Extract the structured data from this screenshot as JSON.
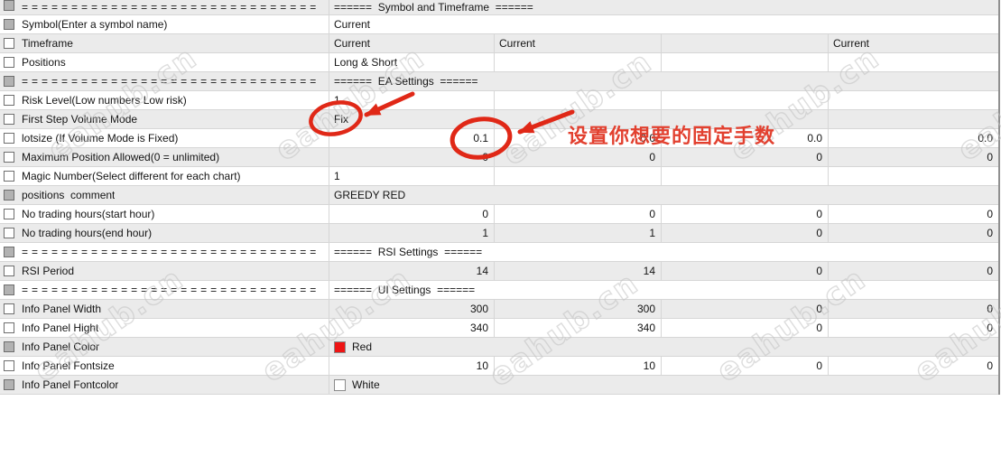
{
  "page": {
    "note_text": "设置你想要的固定手数",
    "watermark_text": "eahub.cn"
  },
  "colors": {
    "pen": "#e02817",
    "note": "#e2402f",
    "row_alt": "#ebebeb",
    "grid": "#d6d6d6",
    "checkbox_fill": "#b2b2b2",
    "swatch_red": "#ee1414",
    "swatch_white": "#ffffff",
    "table_edge": "#8f8f8f"
  },
  "table": {
    "rows": [
      {
        "separator": true,
        "checkbox": "filled",
        "label": "==============================",
        "cells": [
          {
            "text": "======  Symbol and Timeframe  ======",
            "align": "left",
            "span": true
          }
        ]
      },
      {
        "checkbox": "filled",
        "label": "Symbol(Enter a symbol name)",
        "cells": [
          {
            "text": "Current",
            "align": "left",
            "span": true
          }
        ]
      },
      {
        "checkbox": "empty",
        "label": "Timeframe",
        "cells": [
          {
            "text": "Current",
            "align": "left"
          },
          {
            "text": "Current",
            "align": "left"
          },
          {
            "text": "",
            "align": "left"
          },
          {
            "text": "Current",
            "align": "left"
          }
        ]
      },
      {
        "checkbox": "empty",
        "label": "Positions",
        "cells": [
          {
            "text": "Long & Short",
            "align": "left"
          },
          {
            "text": "",
            "align": "left"
          },
          {
            "text": "",
            "align": "left"
          },
          {
            "text": "",
            "align": "left"
          }
        ]
      },
      {
        "separator": true,
        "checkbox": "filled",
        "label": "==============================",
        "cells": [
          {
            "text": "======  EA Settings  ======",
            "align": "left",
            "span": true
          }
        ]
      },
      {
        "checkbox": "empty",
        "label": "Risk Level(Low numbers Low risk)",
        "cells": [
          {
            "text": "1",
            "align": "left"
          },
          {
            "text": "",
            "align": "left"
          },
          {
            "text": "",
            "align": "left"
          },
          {
            "text": "",
            "align": "left"
          }
        ]
      },
      {
        "checkbox": "empty",
        "label": "First Step Volume Mode",
        "cells": [
          {
            "text": "Fix",
            "align": "left"
          },
          {
            "text": "",
            "align": "left"
          },
          {
            "text": "",
            "align": "left"
          },
          {
            "text": "",
            "align": "left"
          }
        ]
      },
      {
        "checkbox": "empty",
        "label": "lotsize (If Volume Mode is Fixed)",
        "cells": [
          {
            "text": "0.1",
            "align": "right"
          },
          {
            "text": "0.0",
            "align": "right"
          },
          {
            "text": "0.0",
            "align": "right"
          },
          {
            "text": "0.0",
            "align": "right"
          }
        ]
      },
      {
        "checkbox": "empty",
        "label": "Maximum Position Allowed(0 = unlimited)",
        "cells": [
          {
            "text": "0",
            "align": "right"
          },
          {
            "text": "0",
            "align": "right"
          },
          {
            "text": "0",
            "align": "right"
          },
          {
            "text": "0",
            "align": "right"
          }
        ]
      },
      {
        "checkbox": "empty",
        "label": "Magic Number(Select different for each chart)",
        "cells": [
          {
            "text": "1",
            "align": "left"
          },
          {
            "text": "",
            "align": "left"
          },
          {
            "text": "",
            "align": "left"
          },
          {
            "text": "",
            "align": "left"
          }
        ]
      },
      {
        "checkbox": "filled",
        "label": "positions  comment",
        "cells": [
          {
            "text": "GREEDY RED",
            "align": "left",
            "span": true
          }
        ]
      },
      {
        "checkbox": "empty",
        "label": "No trading hours(start hour)",
        "cells": [
          {
            "text": "0",
            "align": "right"
          },
          {
            "text": "0",
            "align": "right"
          },
          {
            "text": "0",
            "align": "right"
          },
          {
            "text": "0",
            "align": "right"
          }
        ]
      },
      {
        "checkbox": "empty",
        "label": "No trading hours(end hour)",
        "cells": [
          {
            "text": "1",
            "align": "right"
          },
          {
            "text": "1",
            "align": "right"
          },
          {
            "text": "0",
            "align": "right"
          },
          {
            "text": "0",
            "align": "right"
          }
        ]
      },
      {
        "separator": true,
        "checkbox": "filled",
        "label": "==============================",
        "cells": [
          {
            "text": "======  RSI Settings  ======",
            "align": "left",
            "span": true
          }
        ]
      },
      {
        "checkbox": "empty",
        "label": "RSI Period",
        "cells": [
          {
            "text": "14",
            "align": "right"
          },
          {
            "text": "14",
            "align": "right"
          },
          {
            "text": "0",
            "align": "right"
          },
          {
            "text": "0",
            "align": "right"
          }
        ]
      },
      {
        "separator": true,
        "checkbox": "filled",
        "label": "==============================",
        "cells": [
          {
            "text": "======  UI Settings  ======",
            "align": "left",
            "span": true
          }
        ]
      },
      {
        "checkbox": "empty",
        "label": "Info Panel Width",
        "cells": [
          {
            "text": "300",
            "align": "right"
          },
          {
            "text": "300",
            "align": "right"
          },
          {
            "text": "0",
            "align": "right"
          },
          {
            "text": "0",
            "align": "right"
          }
        ]
      },
      {
        "checkbox": "empty",
        "label": "Info Panel Hight",
        "cells": [
          {
            "text": "340",
            "align": "right"
          },
          {
            "text": "340",
            "align": "right"
          },
          {
            "text": "0",
            "align": "right"
          },
          {
            "text": "0",
            "align": "right"
          }
        ]
      },
      {
        "checkbox": "filled",
        "label": "Info Panel Color",
        "cells": [
          {
            "text": "Red",
            "align": "left",
            "span": true,
            "swatch": "#ee1414"
          }
        ]
      },
      {
        "checkbox": "empty",
        "label": "Info Panel Fontsize",
        "cells": [
          {
            "text": "10",
            "align": "right"
          },
          {
            "text": "10",
            "align": "right"
          },
          {
            "text": "0",
            "align": "right"
          },
          {
            "text": "0",
            "align": "right"
          }
        ]
      },
      {
        "checkbox": "filled",
        "label": "Info Panel Fontcolor",
        "cells": [
          {
            "text": "White",
            "align": "left",
            "span": true,
            "swatch": "#ffffff"
          }
        ]
      }
    ]
  }
}
